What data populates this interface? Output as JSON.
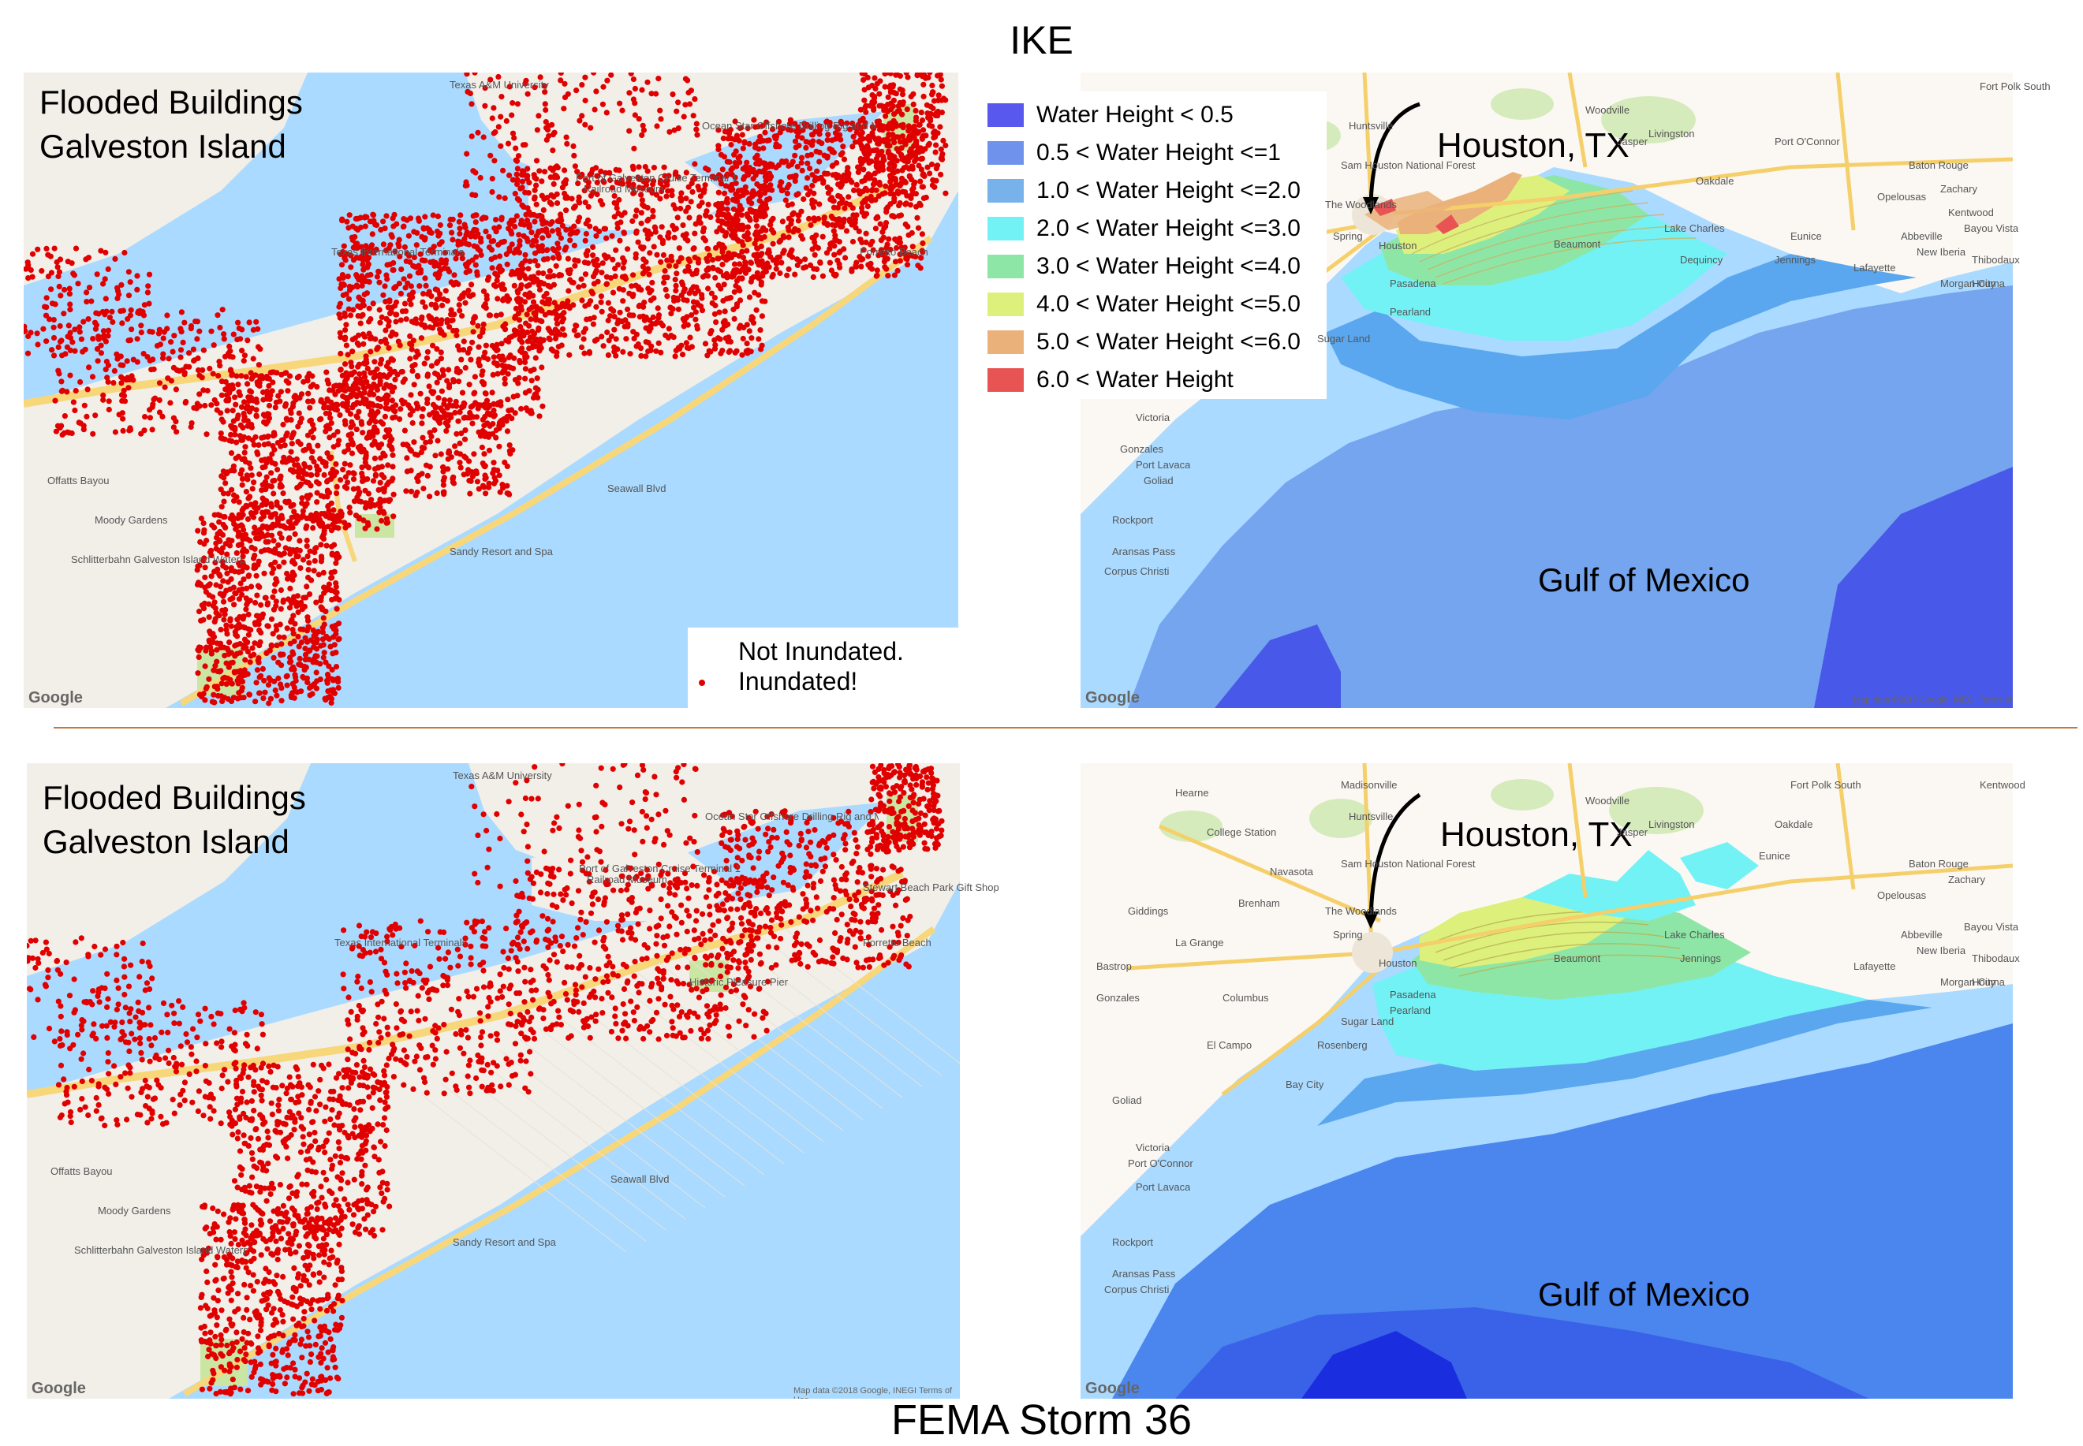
{
  "titles": {
    "top": "IKE",
    "bottom": "FEMA Storm 36"
  },
  "galveston_maps": [
    {
      "title_line1": "Flooded Buildings",
      "title_line2": "Galveston Island",
      "google": "Google",
      "legend": {
        "not_inundated": "Not Inundated.",
        "inundated": "Inundated!"
      },
      "place_labels": [
        "Texas A&M University",
        "Ocean Star Offshore Drilling Rig and Museum",
        "Port of Galveston Cruise Terminal 1",
        "Railroad Museum",
        "Texas International Terminals",
        "Moody Gardens",
        "Schlitterbahn Galveston Island Waterpark",
        "Offatts Bayou",
        "Porretto Beach",
        "Seawall Blvd",
        "Sandy Resort and Spa"
      ]
    },
    {
      "title_line1": "Flooded Buildings",
      "title_line2": "Galveston Island",
      "google": "Google",
      "attribution": "Map data ©2018 Google, INEGI   Terms of Use",
      "place_labels": [
        "Texas A&M University",
        "Ocean Star Offshore Drilling Rig and Museum",
        "Port of Galveston Cruise Terminal 1",
        "Railroad Museum",
        "Texas International Terminals",
        "Moody Gardens",
        "Schlitterbahn Galveston Island Waterpark",
        "Offatts Bayou",
        "Porretto Beach",
        "Stewart Beach Park Gift Shop",
        "Historic Pleasure Pier",
        "Seawall Blvd",
        "Sandy Resort and Spa"
      ]
    }
  ],
  "surge_maps": [
    {
      "city": "Houston, TX",
      "gulf": "Gulf of Mexico",
      "google": "Google",
      "attribution": "Map data ©2017 Google, INEGI   Terms of Use",
      "place_labels": [
        "Houston",
        "Pasadena",
        "Pearland",
        "Sugar Land",
        "Victoria",
        "Port Lavaca",
        "Rockport",
        "Aransas Pass",
        "Corpus Christi",
        "Beaumont",
        "Lake Charles",
        "Lafayette",
        "Baton Rouge",
        "New Iberia",
        "Morgan City",
        "Houma",
        "Thibodaux",
        "Bayou Vista",
        "Opelousas",
        "Abbeville",
        "Huntsville",
        "Woodville",
        "Jasper",
        "Livingston",
        "Sam Houston National Forest",
        "The Woodlands",
        "Spring",
        "Dequincy",
        "Jennings",
        "Eunice",
        "Oakdale",
        "Zachary",
        "Gonzales",
        "Goliad",
        "Port O'Connor",
        "Fort Polk South",
        "Kentwood"
      ]
    },
    {
      "city": "Houston, TX",
      "gulf": "Gulf of Mexico",
      "google": "Google",
      "place_labels": [
        "Houston",
        "Pasadena",
        "Pearland",
        "Sugar Land",
        "Rosenberg",
        "Victoria",
        "Port Lavaca",
        "Rockport",
        "Aransas Pass",
        "Corpus Christi",
        "Beaumont",
        "Lake Charles",
        "Lafayette",
        "Baton Rouge",
        "New Iberia",
        "Morgan City",
        "Houma",
        "Thibodaux",
        "Bayou Vista",
        "Opelousas",
        "Abbeville",
        "Huntsville",
        "Woodville",
        "Jasper",
        "Livingston",
        "Sam Houston National Forest",
        "The Woodlands",
        "Spring",
        "College Station",
        "Madisonville",
        "Hearne",
        "Navasota",
        "Brenham",
        "Giddings",
        "La Grange",
        "Bastrop",
        "Columbus",
        "El Campo",
        "Bay City",
        "Gonzales",
        "Goliad",
        "Port O'Connor",
        "Fort Polk South",
        "Kentwood",
        "Zachary",
        "Oakdale",
        "Eunice",
        "Jennings"
      ]
    }
  ],
  "legend": {
    "entries": [
      {
        "label": "Water Height < 0.5",
        "color": "#5858ee"
      },
      {
        "label": "0.5 < Water Height <=1",
        "color": "#6f93ec"
      },
      {
        "label": "1.0 < Water Height <=2.0",
        "color": "#78b2ea"
      },
      {
        "label": "2.0 < Water Height <=3.0",
        "color": "#72f2f5"
      },
      {
        "label": "3.0 < Water Height <=4.0",
        "color": "#8ee6a6"
      },
      {
        "label": "4.0 < Water Height <=5.0",
        "color": "#def07c"
      },
      {
        "label": "5.0 < Water Height <=6.0",
        "color": "#eab27a"
      },
      {
        "label": "6.0 < Water Height",
        "color": "#e85454"
      }
    ]
  },
  "colors": {
    "water": "#aadaff",
    "land": "#f2efe9",
    "city": "#f6f3ee",
    "road": "#f7d77a",
    "dot": "#e00000",
    "park": "#cbe6a3",
    "inland": "#fbf8f3"
  }
}
